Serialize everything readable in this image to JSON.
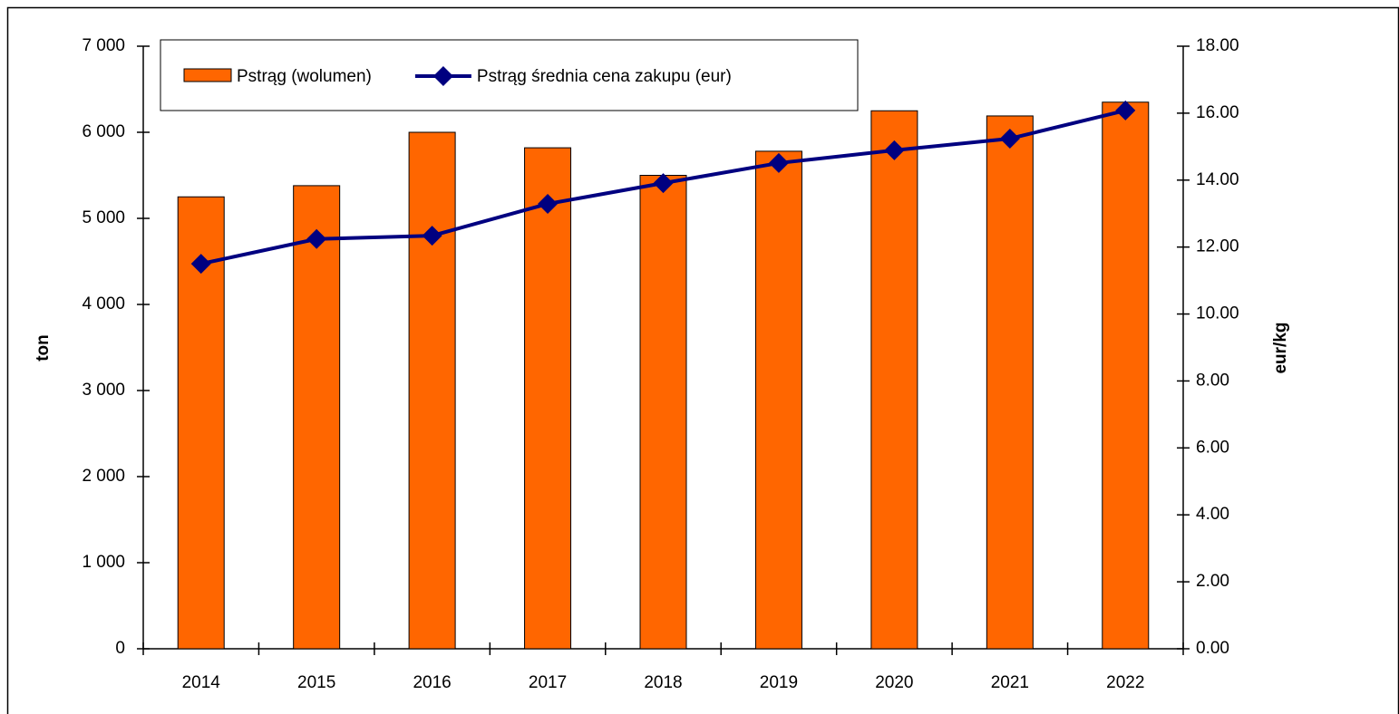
{
  "chart_data": {
    "type": "bar_line",
    "categories": [
      "2014",
      "2015",
      "2016",
      "2017",
      "2018",
      "2019",
      "2020",
      "2021",
      "2022"
    ],
    "series": [
      {
        "name": "Pstrąg (wolumen)",
        "color": "#ff6600",
        "type": "bar",
        "values": [
          5250,
          5380,
          6000,
          5820,
          5500,
          5780,
          6250,
          6190,
          6350
        ]
      },
      {
        "name": "Pstrąg średnia cena zakupu (eur)",
        "color": "#000080",
        "type": "line",
        "axis": "y2",
        "values": [
          11.5,
          12.24,
          12.34,
          13.29,
          13.91,
          14.51,
          14.89,
          15.24,
          16.08
        ]
      }
    ],
    "ylabel": "ton",
    "y2label": "eur/kg",
    "ylim": [
      0,
      7000
    ],
    "yticks": [
      0,
      {
        "value": 1000,
        "label": "1 000"
      },
      {
        "value": 2000,
        "label": "2 000"
      },
      {
        "value": 3000,
        "label": "3 000"
      },
      {
        "value": 4000,
        "label": "4 000"
      },
      {
        "value": 5000,
        "label": "5 000"
      },
      {
        "value": 6000,
        "label": "6 000"
      },
      {
        "value": 7000,
        "label": "7 000"
      }
    ],
    "y2lim": [
      0,
      18
    ],
    "y2ticks": [
      {
        "value": 0,
        "label": "0.00"
      },
      {
        "value": 2,
        "label": "2.00"
      },
      {
        "value": 4,
        "label": "4.00"
      },
      {
        "value": 6,
        "label": "6.00"
      },
      {
        "value": 8,
        "label": "8.00"
      },
      {
        "value": 10,
        "label": "10.00"
      },
      {
        "value": 12,
        "label": "12.00"
      },
      {
        "value": 14,
        "label": "14.00"
      },
      {
        "value": 16,
        "label": "16.00"
      },
      {
        "value": 18,
        "label": "18.00"
      }
    ],
    "legend": "top-left",
    "grid": false
  }
}
